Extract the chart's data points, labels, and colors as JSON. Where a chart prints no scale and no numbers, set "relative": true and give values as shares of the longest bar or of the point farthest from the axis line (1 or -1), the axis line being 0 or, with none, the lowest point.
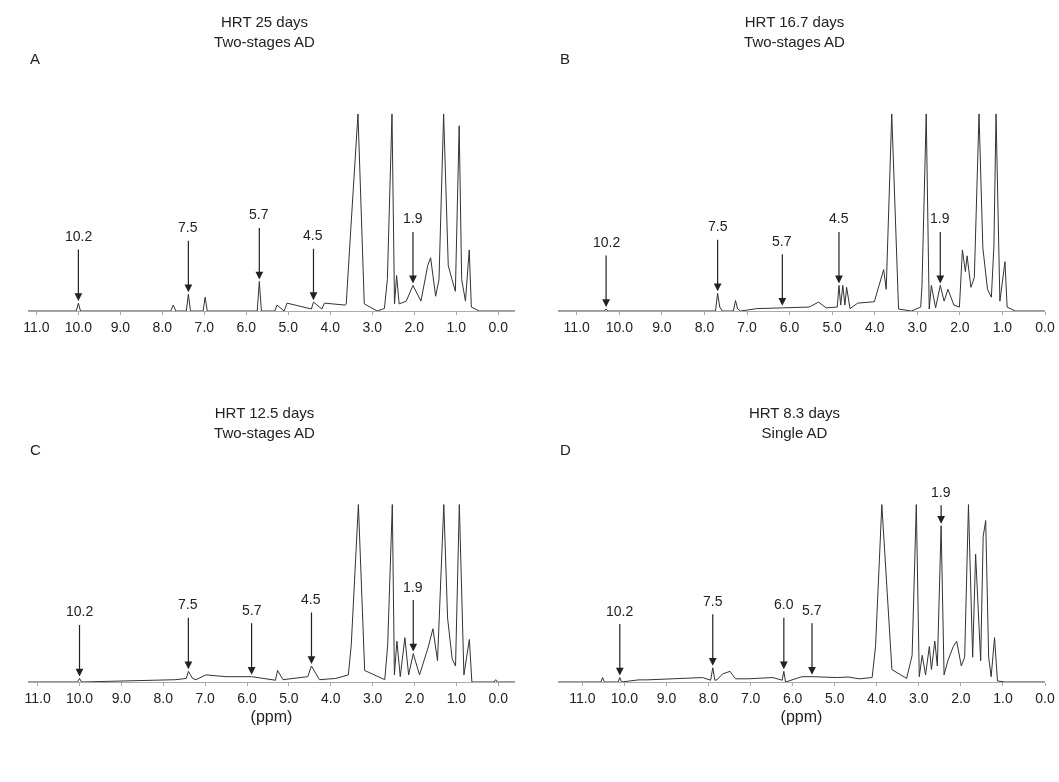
{
  "chart_data": [
    {
      "type": "line",
      "title": "HRT 25 days",
      "subtitle": "Two-stages AD",
      "relative": true,
      "xlim": [
        11.2,
        -0.4
      ],
      "xticks": [
        {
          "value": 11,
          "label": "11.0"
        },
        {
          "value": 10,
          "label": "10.0"
        },
        {
          "value": 9,
          "label": "9.0"
        },
        {
          "value": 8,
          "label": "8.0"
        },
        {
          "value": 7,
          "label": "7.0"
        },
        {
          "value": 6,
          "label": "6.0"
        },
        {
          "value": 5,
          "label": "5.0"
        },
        {
          "value": 4,
          "label": "4.0"
        },
        {
          "value": 3,
          "label": "3.0"
        },
        {
          "value": 2,
          "label": "2.0"
        },
        {
          "value": 1,
          "label": "1.0"
        },
        {
          "value": 0,
          "label": "0.0"
        }
      ],
      "annotations": [
        "A",
        {
          "text": "10.2",
          "x": 10.0,
          "y": 0.04
        },
        {
          "text": "7.5",
          "x": 7.38,
          "y": 0.085
        },
        {
          "text": "5.7",
          "x": 5.69,
          "y": 0.15
        },
        {
          "text": "4.5",
          "x": 4.4,
          "y": 0.045
        },
        {
          "text": "1.9",
          "x": 2.03,
          "y": 0.13
        }
      ],
      "series": [
        {
          "color": "#333333",
          "x": [
            11.2,
            10.05,
            10.0,
            9.95,
            7.8,
            7.74,
            7.68,
            7.43,
            7.38,
            7.33,
            7.03,
            6.98,
            6.93,
            5.74,
            5.69,
            5.64,
            5.32,
            5.27,
            5.1,
            5.03,
            4.45,
            4.4,
            4.2,
            4.14,
            3.65,
            3.62,
            3.51,
            3.34,
            3.19,
            2.88,
            2.71,
            2.64,
            2.53,
            2.47,
            2.42,
            2.36,
            2.19,
            2.03,
            1.84,
            1.68,
            1.61,
            1.49,
            1.41,
            1.3,
            1.19,
            1.1,
            1.02,
            0.93,
            0.87,
            0.78,
            0.69,
            0.64,
            0.45,
            -0.4
          ],
          "values": [
            0,
            0,
            0.04,
            0,
            0,
            0.03,
            0,
            0,
            0.085,
            0,
            0,
            0.07,
            0,
            0,
            0.15,
            0,
            0,
            0.03,
            0,
            0.04,
            0.01,
            0.045,
            0.01,
            0.04,
            0.03,
            0.035,
            0.42,
            1,
            0.036,
            0,
            0.013,
            0.16,
            1,
            0.036,
            0.18,
            0.036,
            0.05,
            0.13,
            0.05,
            0.23,
            0.27,
            0.075,
            0.16,
            1,
            0.23,
            0.16,
            0.1,
            0.94,
            0.16,
            0.05,
            0.31,
            0.02,
            0,
            0
          ]
        }
      ]
    },
    {
      "type": "line",
      "title": "HRT 16.7 days",
      "subtitle": "Two-stages AD",
      "relative": true,
      "xlim": [
        11.44,
        0
      ],
      "xticks": [
        {
          "value": 11,
          "label": "11.0"
        },
        {
          "value": 10,
          "label": "10.0"
        },
        {
          "value": 9,
          "label": "9.0"
        },
        {
          "value": 8,
          "label": "8.0"
        },
        {
          "value": 7,
          "label": "7.0"
        },
        {
          "value": 6,
          "label": "6.0"
        },
        {
          "value": 5,
          "label": "5.0"
        },
        {
          "value": 4,
          "label": "4.0"
        },
        {
          "value": 3,
          "label": "3.0"
        },
        {
          "value": 2,
          "label": "2.0"
        },
        {
          "value": 1,
          "label": "1.0"
        },
        {
          "value": 0,
          "label": "0.0"
        }
      ],
      "annotations": [
        "B",
        {
          "text": "10.2",
          "x": 10.31,
          "y": 0.01
        },
        {
          "text": "7.5",
          "x": 7.69,
          "y": 0.09
        },
        {
          "text": "5.7",
          "x": 6.17,
          "y": 0.016
        },
        {
          "text": "4.5",
          "x": 4.84,
          "y": 0.13
        },
        {
          "text": "1.9",
          "x": 2.46,
          "y": 0.13
        }
      ],
      "series": [
        {
          "color": "#333333",
          "x": [
            11.44,
            10.35,
            10.31,
            10.27,
            8.06,
            7.74,
            7.69,
            7.64,
            7.58,
            7.32,
            7.27,
            7.22,
            7.15,
            6.77,
            6.17,
            5.54,
            5.32,
            5.14,
            4.88,
            4.84,
            4.8,
            4.75,
            4.7,
            4.66,
            4.58,
            4.4,
            4.01,
            3.79,
            3.73,
            3.6,
            3.44,
            3.14,
            2.92,
            2.89,
            2.79,
            2.72,
            2.67,
            2.57,
            2.46,
            2.37,
            2.28,
            2.14,
            2.01,
            1.94,
            1.87,
            1.83,
            1.74,
            1.66,
            1.55,
            1.46,
            1.35,
            1.26,
            1.2,
            1.15,
            1.06,
            0.94,
            0.89,
            0.7,
            0
          ],
          "values": [
            0,
            0,
            0.01,
            0,
            0,
            0,
            0.09,
            0.02,
            0,
            0,
            0.053,
            0.01,
            0,
            0.012,
            0.016,
            0.02,
            0.045,
            0.016,
            0.02,
            0.13,
            0.03,
            0.13,
            0.03,
            0.12,
            0.012,
            0.04,
            0.047,
            0.21,
            0.11,
            1,
            0.01,
            0,
            0.02,
            0.13,
            1,
            0.01,
            0.13,
            0.016,
            0.13,
            0.05,
            0.11,
            0.03,
            0.02,
            0.31,
            0.2,
            0.28,
            0.12,
            0.17,
            1,
            0.32,
            0.11,
            0.07,
            0.33,
            1,
            0.05,
            0.25,
            0.02,
            0,
            0
          ]
        }
      ]
    },
    {
      "type": "line",
      "title": "HRT 12.5 days",
      "subtitle": "Two-stages AD",
      "xlabel": "(ppm)",
      "relative": true,
      "xlim": [
        11.23,
        -0.4
      ],
      "xticks": [
        {
          "value": 11,
          "label": "11.0"
        },
        {
          "value": 10,
          "label": "10.0"
        },
        {
          "value": 9,
          "label": "9.0"
        },
        {
          "value": 8,
          "label": "8.0"
        },
        {
          "value": 7,
          "label": "7.0"
        },
        {
          "value": 6,
          "label": "6.0"
        },
        {
          "value": 5,
          "label": "5.0"
        },
        {
          "value": 4,
          "label": "4.0"
        },
        {
          "value": 3,
          "label": "3.0"
        },
        {
          "value": 2,
          "label": "2.0"
        },
        {
          "value": 1,
          "label": "1.0"
        },
        {
          "value": 0,
          "label": "0.0"
        }
      ],
      "annotations": [
        "C",
        {
          "text": "10.2",
          "x": 10.0,
          "y": 0.02
        },
        {
          "text": "7.5",
          "x": 7.4,
          "y": 0.06
        },
        {
          "text": "5.7",
          "x": 5.89,
          "y": 0.03
        },
        {
          "text": "4.5",
          "x": 4.46,
          "y": 0.09
        },
        {
          "text": "1.9",
          "x": 2.03,
          "y": 0.16
        }
      ],
      "series": [
        {
          "color": "#333333",
          "x": [
            11.23,
            10.05,
            10.0,
            9.95,
            7.7,
            7.45,
            7.4,
            7.3,
            7.22,
            6.98,
            6.5,
            5.89,
            5.32,
            5.27,
            5.14,
            4.55,
            4.46,
            4.27,
            3.88,
            3.58,
            3.51,
            3.34,
            3.19,
            2.71,
            2.64,
            2.53,
            2.48,
            2.42,
            2.34,
            2.23,
            2.14,
            2.03,
            1.88,
            1.68,
            1.56,
            1.45,
            1.3,
            1.21,
            1.1,
            1.02,
            0.93,
            0.82,
            0.69,
            0.63,
            0.1,
            0.06,
            0.02,
            -0.4
          ],
          "values": [
            0,
            0,
            0.02,
            0,
            0.013,
            0.02,
            0.06,
            0.02,
            0.013,
            0.04,
            0.03,
            0.03,
            0.01,
            0.065,
            0.013,
            0.03,
            0.09,
            0.013,
            0.02,
            0.04,
            0.21,
            1,
            0.065,
            0.013,
            0.21,
            1,
            0.04,
            0.23,
            0.03,
            0.25,
            0.04,
            0.16,
            0.04,
            0.19,
            0.3,
            0.12,
            1,
            0.36,
            0.13,
            0.09,
            1,
            0.04,
            0.24,
            0,
            0,
            0.013,
            0,
            0
          ]
        }
      ]
    },
    {
      "type": "line",
      "title": "HRT 8.3 days",
      "subtitle": "Single AD",
      "xlabel": "(ppm)",
      "relative": true,
      "xlim": [
        11.58,
        0
      ],
      "xticks": [
        {
          "value": 11,
          "label": "11.0"
        },
        {
          "value": 10,
          "label": "10.0"
        },
        {
          "value": 9,
          "label": "9.0"
        },
        {
          "value": 8,
          "label": "8.0"
        },
        {
          "value": 7,
          "label": "7.0"
        },
        {
          "value": 6,
          "label": "6.0"
        },
        {
          "value": 5,
          "label": "5.0"
        },
        {
          "value": 4,
          "label": "4.0"
        },
        {
          "value": 3,
          "label": "3.0"
        },
        {
          "value": 2,
          "label": "2.0"
        },
        {
          "value": 1,
          "label": "1.0"
        },
        {
          "value": 0,
          "label": "0.0"
        }
      ],
      "annotations": [
        "D",
        {
          "text": "10.2",
          "x": 10.11,
          "y": 0.025
        },
        {
          "text": "7.5",
          "x": 7.9,
          "y": 0.08
        },
        {
          "text": "6.0",
          "x": 6.21,
          "y": 0.06
        },
        {
          "text": "5.7",
          "x": 5.54,
          "y": 0.03
        },
        {
          "text": "1.9",
          "x": 2.47,
          "y": 0.88
        }
      ],
      "series": [
        {
          "color": "#333333",
          "x": [
            11.58,
            10.56,
            10.52,
            10.48,
            10.15,
            10.11,
            10.07,
            9.66,
            9.46,
            8.14,
            7.95,
            7.9,
            7.85,
            7.8,
            7.67,
            7.49,
            7.36,
            7.06,
            6.47,
            6.25,
            6.21,
            6.17,
            5.78,
            5.54,
            4.94,
            4.68,
            4.42,
            4.11,
            4.03,
            3.88,
            3.64,
            3.29,
            3.16,
            3.06,
            2.99,
            2.92,
            2.84,
            2.75,
            2.7,
            2.62,
            2.56,
            2.47,
            2.4,
            2.31,
            2.18,
            2.1,
            1.99,
            1.91,
            1.82,
            1.72,
            1.65,
            1.6,
            1.53,
            1.47,
            1.41,
            1.34,
            1.28,
            1.2,
            1.13,
            0.95,
            0
          ],
          "values": [
            0,
            0,
            0.025,
            0,
            0,
            0.025,
            0,
            0.012,
            0.012,
            0.025,
            0.01,
            0.08,
            0.01,
            0.012,
            0.045,
            0.06,
            0.018,
            0.018,
            0.025,
            0.01,
            0.06,
            0,
            0.03,
            0.03,
            0.025,
            0.028,
            0.018,
            0.025,
            0.2,
            1,
            0.07,
            0.02,
            0.15,
            1,
            0.03,
            0.15,
            0.04,
            0.2,
            0.07,
            0.23,
            0.09,
            0.88,
            0.04,
            0.12,
            0.2,
            0.23,
            0.09,
            0.14,
            1,
            0.14,
            0.72,
            0.47,
            0.12,
            0.82,
            0.91,
            0.14,
            0.03,
            0.25,
            0.006,
            0,
            0
          ]
        }
      ]
    }
  ]
}
